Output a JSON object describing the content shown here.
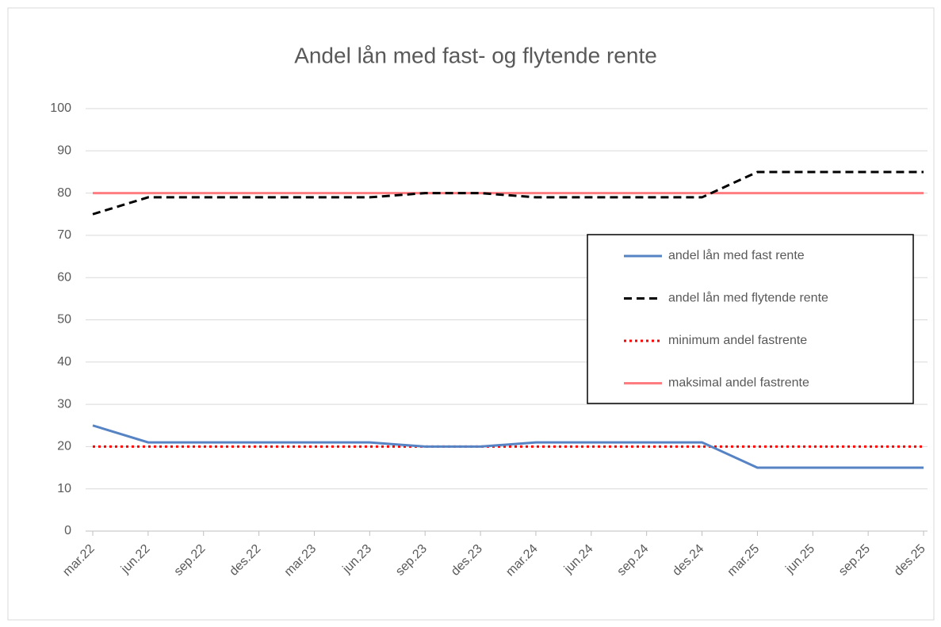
{
  "chart_data": {
    "type": "line",
    "title": "Andel lån med fast- og flytende rente",
    "categories": [
      "mar.22",
      "jun.22",
      "sep.22",
      "des.22",
      "mar.23",
      "jun.23",
      "sep.23",
      "des.23",
      "mar.24",
      "jun.24",
      "sep.24",
      "des.24",
      "mar.25",
      "jun.25",
      "sep.25",
      "des.25"
    ],
    "series": [
      {
        "name": "andel lån med fast rente",
        "color": "#5683c4",
        "style": "solid",
        "values": [
          25,
          21,
          21,
          21,
          21,
          21,
          20,
          20,
          21,
          21,
          21,
          21,
          15,
          15,
          15,
          15
        ]
      },
      {
        "name": "andel lån med flytende rente",
        "color": "#000000",
        "style": "dashed",
        "values": [
          75,
          79,
          79,
          79,
          79,
          79,
          80,
          80,
          79,
          79,
          79,
          79,
          85,
          85,
          85,
          85
        ]
      },
      {
        "name": "minimum andel fastrente",
        "color": "#ff0000",
        "style": "dotted",
        "values": [
          20,
          20,
          20,
          20,
          20,
          20,
          20,
          20,
          20,
          20,
          20,
          20,
          20,
          20,
          20,
          20
        ]
      },
      {
        "name": "maksimal andel fastrente",
        "color": "#ff7c80",
        "style": "solid",
        "values": [
          80,
          80,
          80,
          80,
          80,
          80,
          80,
          80,
          80,
          80,
          80,
          80,
          80,
          80,
          80,
          80
        ]
      }
    ],
    "ylim": [
      0,
      100
    ],
    "yticks": [
      0,
      10,
      20,
      30,
      40,
      50,
      60,
      70,
      80,
      90,
      100
    ],
    "grid": true
  }
}
